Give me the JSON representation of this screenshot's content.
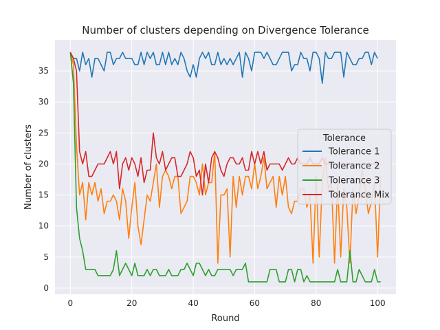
{
  "chart_data": {
    "type": "line",
    "title": "Number of clusters depending on Divergence Tolerance",
    "xlabel": "Round",
    "ylabel": "Number of clusters",
    "xlim": [
      -5,
      106
    ],
    "ylim": [
      -1,
      40
    ],
    "xticks": [
      0,
      20,
      40,
      60,
      80,
      100
    ],
    "yticks": [
      0,
      5,
      10,
      15,
      20,
      25,
      30,
      35
    ],
    "grid": true,
    "background": "#eaeaf2",
    "legend": {
      "title": "Tolerance",
      "position": "center-right"
    },
    "series": [
      {
        "name": "Tolerance 1",
        "color": "#1f77b4",
        "values": [
          38,
          37,
          37,
          35,
          38,
          36,
          37,
          34,
          37,
          37,
          36,
          35,
          38,
          38,
          36,
          37,
          37,
          38,
          37,
          37,
          37,
          36,
          36,
          38,
          36,
          38,
          37,
          38,
          36,
          36,
          38,
          36,
          38,
          36,
          37,
          36,
          38,
          37,
          35,
          34,
          36,
          34,
          37,
          38,
          37,
          38,
          36,
          36,
          38,
          36,
          37,
          36,
          37,
          36,
          37,
          38,
          34,
          38,
          37,
          35,
          38,
          38,
          38,
          37,
          38,
          37,
          36,
          36,
          37,
          38,
          38,
          38,
          35,
          36,
          36,
          38,
          37,
          37,
          35,
          38,
          38,
          37,
          33,
          38,
          37,
          37,
          38,
          38,
          38,
          34,
          38,
          37,
          36,
          36,
          37,
          37,
          38,
          38,
          36,
          38,
          37
        ]
      },
      {
        "name": "Tolerance 2",
        "color": "#ff7f0e",
        "values": [
          38,
          36,
          23,
          15,
          17,
          11,
          17,
          15,
          17,
          14,
          16,
          12,
          14,
          14,
          15,
          14,
          11,
          16,
          14,
          8,
          13,
          17,
          10,
          7,
          11,
          15,
          14,
          17,
          20,
          13,
          18,
          19,
          18,
          16,
          18,
          18,
          12,
          13,
          14,
          18,
          18,
          17,
          15,
          20,
          15,
          17,
          17,
          22,
          4,
          15,
          15,
          16,
          5,
          18,
          13,
          18,
          15,
          18,
          18,
          16,
          20,
          16,
          18,
          21,
          16,
          17,
          18,
          13,
          18,
          15,
          18,
          13,
          12,
          14,
          14,
          16,
          16,
          13,
          15,
          4,
          18,
          5,
          17,
          21,
          16,
          17,
          4,
          17,
          5,
          16,
          13,
          4,
          16,
          12,
          15,
          19,
          16,
          12,
          14,
          17,
          5,
          18
        ]
      },
      {
        "name": "Tolerance 3",
        "color": "#2ca02c",
        "values": [
          38,
          33,
          13,
          8,
          6,
          3,
          3,
          3,
          3,
          2,
          2,
          2,
          2,
          2,
          3,
          6,
          2,
          3,
          4,
          3,
          2,
          4,
          2,
          2,
          2,
          3,
          2,
          3,
          3,
          2,
          2,
          2,
          3,
          2,
          2,
          2,
          3,
          3,
          4,
          3,
          2,
          4,
          4,
          3,
          2,
          3,
          2,
          2,
          3,
          3,
          3,
          3,
          3,
          2,
          3,
          3,
          3,
          4,
          1,
          1,
          1,
          1,
          1,
          1,
          1,
          3,
          3,
          3,
          1,
          1,
          1,
          3,
          3,
          1,
          3,
          3,
          1,
          2,
          1,
          1,
          1,
          1,
          1,
          1,
          1,
          1,
          1,
          3,
          1,
          1,
          1,
          6,
          1,
          1,
          3,
          2,
          1,
          1,
          1,
          3,
          1,
          1
        ]
      },
      {
        "name": "Tolerance Mix",
        "color": "#d62728",
        "values": [
          38,
          37,
          35,
          22,
          20,
          22,
          18,
          18,
          19,
          20,
          20,
          20,
          21,
          22,
          20,
          22,
          16,
          20,
          21,
          19,
          21,
          20,
          18,
          21,
          17,
          19,
          19,
          25,
          21,
          20,
          22,
          19,
          20,
          21,
          21,
          18,
          18,
          19,
          20,
          22,
          21,
          18,
          19,
          15,
          20,
          17,
          21,
          22,
          21,
          19,
          18,
          20,
          21,
          21,
          20,
          20,
          21,
          19,
          19,
          22,
          20,
          22,
          20,
          22,
          19,
          20,
          20,
          20,
          20,
          19,
          20,
          21,
          20,
          20,
          21,
          20,
          20,
          20,
          21,
          20,
          20,
          20,
          21,
          20,
          20,
          20,
          20,
          20,
          20,
          20,
          20,
          20,
          20,
          20,
          20,
          20,
          20,
          20,
          20,
          20,
          20,
          20
        ]
      }
    ]
  }
}
